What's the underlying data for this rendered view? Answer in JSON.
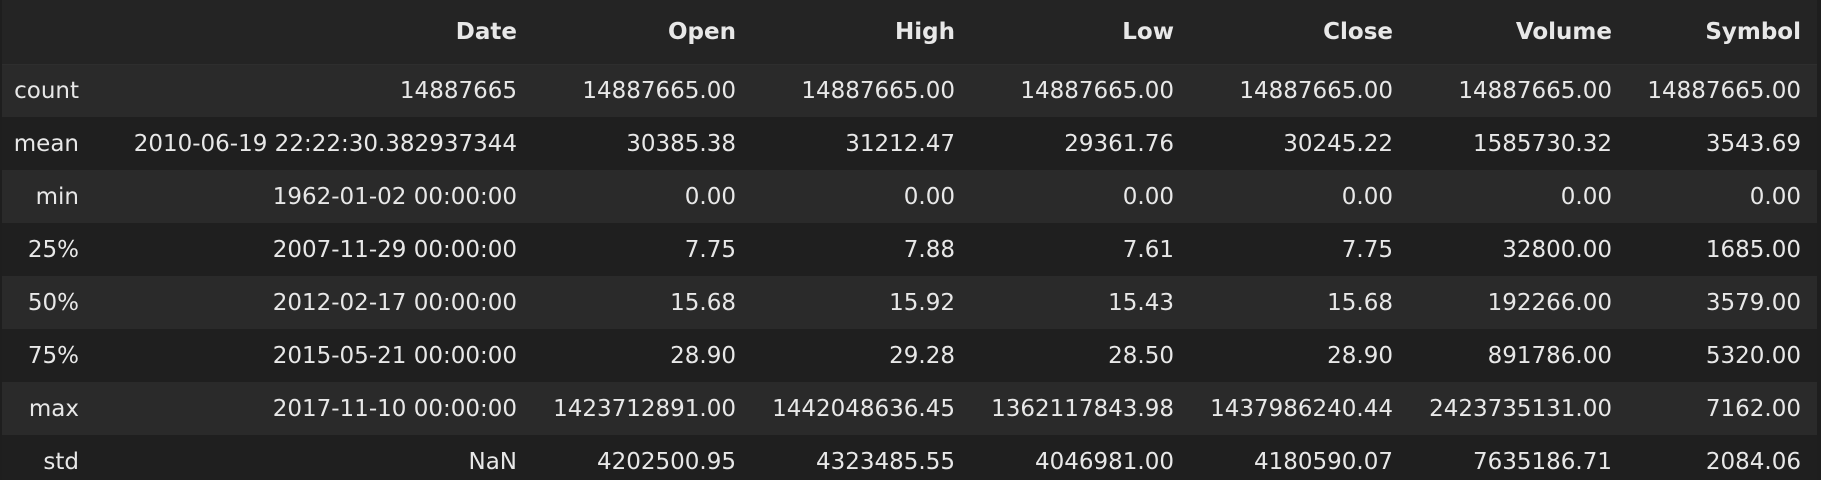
{
  "table": {
    "columns": [
      "",
      "Date",
      "Open",
      "High",
      "Low",
      "Close",
      "Volume",
      "Symbol"
    ],
    "rows": [
      {
        "label": "count",
        "cells": [
          "14887665",
          "14887665.00",
          "14887665.00",
          "14887665.00",
          "14887665.00",
          "14887665.00",
          "14887665.00"
        ]
      },
      {
        "label": "mean",
        "cells": [
          "2010-06-19 22:22:30.382937344",
          "30385.38",
          "31212.47",
          "29361.76",
          "30245.22",
          "1585730.32",
          "3543.69"
        ]
      },
      {
        "label": "min",
        "cells": [
          "1962-01-02 00:00:00",
          "0.00",
          "0.00",
          "0.00",
          "0.00",
          "0.00",
          "0.00"
        ]
      },
      {
        "label": "25%",
        "cells": [
          "2007-11-29 00:00:00",
          "7.75",
          "7.88",
          "7.61",
          "7.75",
          "32800.00",
          "1685.00"
        ]
      },
      {
        "label": "50%",
        "cells": [
          "2012-02-17 00:00:00",
          "15.68",
          "15.92",
          "15.43",
          "15.68",
          "192266.00",
          "3579.00"
        ]
      },
      {
        "label": "75%",
        "cells": [
          "2015-05-21 00:00:00",
          "28.90",
          "29.28",
          "28.50",
          "28.90",
          "891786.00",
          "5320.00"
        ]
      },
      {
        "label": "max",
        "cells": [
          "2017-11-10 00:00:00",
          "1423712891.00",
          "1442048636.45",
          "1362117843.98",
          "1437986240.44",
          "2423735131.00",
          "7162.00"
        ]
      },
      {
        "label": "std",
        "cells": [
          "NaN",
          "4202500.95",
          "4323485.55",
          "4046981.00",
          "4180590.07",
          "7635186.71",
          "2084.06"
        ]
      }
    ]
  },
  "colors": {
    "background": "#1e1e1e",
    "row_odd": "#2a2a2a",
    "row_even": "#1f1f1f",
    "text": "#e8e8e8"
  }
}
